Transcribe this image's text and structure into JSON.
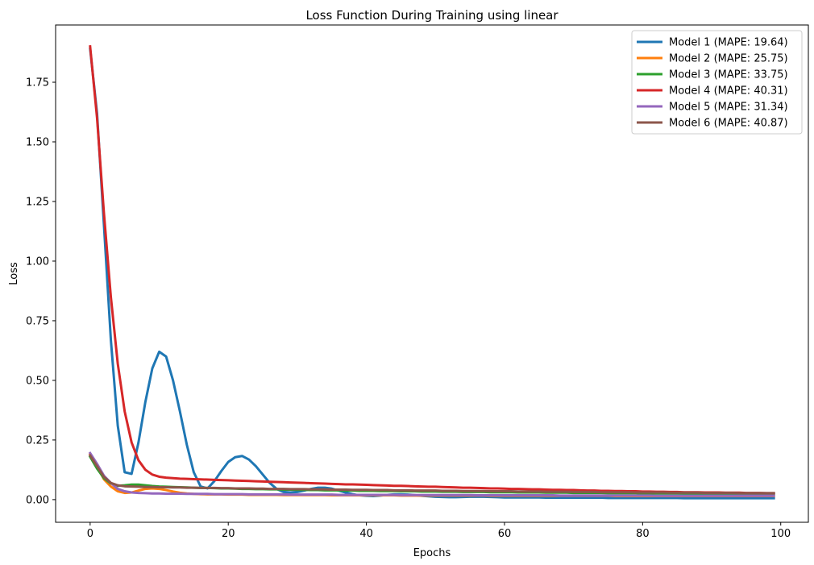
{
  "chart_data": {
    "type": "line",
    "title": "Loss Function During Training using linear",
    "xlabel": "Epochs",
    "ylabel": "Loss",
    "xlim": [
      -5,
      104
    ],
    "ylim": [
      -0.095,
      1.99
    ],
    "xticks": [
      0,
      20,
      40,
      60,
      80,
      100
    ],
    "xtick_labels": [
      "0",
      "20",
      "40",
      "60",
      "80",
      "100"
    ],
    "yticks": [
      0.0,
      0.25,
      0.5,
      0.75,
      1.0,
      1.25,
      1.5,
      1.75
    ],
    "ytick_labels": [
      "0.00",
      "0.25",
      "0.50",
      "0.75",
      "1.00",
      "1.25",
      "1.50",
      "1.75"
    ],
    "grid": false,
    "legend_position": "top-right",
    "x": {
      "start": 0,
      "end": 99,
      "step": 1
    },
    "series": [
      {
        "name": "Model 1 (MAPE: 19.64)",
        "color": "#1f77b4",
        "values": [
          1.89,
          1.62,
          1.15,
          0.67,
          0.31,
          0.115,
          0.108,
          0.24,
          0.41,
          0.55,
          0.62,
          0.6,
          0.5,
          0.37,
          0.23,
          0.115,
          0.055,
          0.047,
          0.078,
          0.12,
          0.158,
          0.178,
          0.183,
          0.168,
          0.14,
          0.105,
          0.07,
          0.045,
          0.032,
          0.03,
          0.032,
          0.038,
          0.045,
          0.05,
          0.05,
          0.046,
          0.038,
          0.03,
          0.023,
          0.018,
          0.016,
          0.015,
          0.017,
          0.02,
          0.022,
          0.022,
          0.021,
          0.019,
          0.016,
          0.014,
          0.012,
          0.011,
          0.01,
          0.01,
          0.011,
          0.012,
          0.012,
          0.012,
          0.011,
          0.01,
          0.009,
          0.009,
          0.009,
          0.009,
          0.009,
          0.009,
          0.008,
          0.008,
          0.008,
          0.008,
          0.008,
          0.008,
          0.008,
          0.008,
          0.008,
          0.007,
          0.007,
          0.007,
          0.007,
          0.007,
          0.007,
          0.007,
          0.007,
          0.007,
          0.007,
          0.007,
          0.006,
          0.006,
          0.006,
          0.006,
          0.006,
          0.006,
          0.006,
          0.006,
          0.006,
          0.006,
          0.006,
          0.006,
          0.006,
          0.006
        ]
      },
      {
        "name": "Model 2 (MAPE: 25.75)",
        "color": "#ff7f0e",
        "values": [
          0.19,
          0.14,
          0.085,
          0.055,
          0.035,
          0.028,
          0.03,
          0.038,
          0.045,
          0.047,
          0.045,
          0.04,
          0.034,
          0.029,
          0.026,
          0.024,
          0.023,
          0.022,
          0.022,
          0.022,
          0.021,
          0.021,
          0.021,
          0.02,
          0.02,
          0.02,
          0.02,
          0.02,
          0.019,
          0.019,
          0.019,
          0.019,
          0.019,
          0.019,
          0.019,
          0.018,
          0.018,
          0.018,
          0.018,
          0.018,
          0.018,
          0.018,
          0.018,
          0.018,
          0.018,
          0.017,
          0.017,
          0.017,
          0.017,
          0.017,
          0.017,
          0.017,
          0.017,
          0.017,
          0.017,
          0.017,
          0.017,
          0.017,
          0.016,
          0.016,
          0.016,
          0.016,
          0.016,
          0.016,
          0.016,
          0.016,
          0.016,
          0.016,
          0.016,
          0.016,
          0.016,
          0.016,
          0.016,
          0.016,
          0.016,
          0.016,
          0.015,
          0.015,
          0.015,
          0.015,
          0.015,
          0.015,
          0.015,
          0.015,
          0.015,
          0.015,
          0.015,
          0.015,
          0.015,
          0.015,
          0.015,
          0.015,
          0.015,
          0.015,
          0.015,
          0.015,
          0.015,
          0.015,
          0.015,
          0.015
        ]
      },
      {
        "name": "Model 3 (MAPE: 33.75)",
        "color": "#2ca02c",
        "values": [
          0.18,
          0.13,
          0.09,
          0.068,
          0.058,
          0.06,
          0.063,
          0.063,
          0.06,
          0.057,
          0.055,
          0.054,
          0.053,
          0.052,
          0.051,
          0.05,
          0.049,
          0.049,
          0.048,
          0.047,
          0.047,
          0.046,
          0.045,
          0.045,
          0.044,
          0.044,
          0.043,
          0.043,
          0.042,
          0.042,
          0.041,
          0.041,
          0.04,
          0.04,
          0.039,
          0.039,
          0.039,
          0.038,
          0.038,
          0.037,
          0.037,
          0.037,
          0.036,
          0.036,
          0.036,
          0.035,
          0.035,
          0.035,
          0.034,
          0.034,
          0.034,
          0.033,
          0.033,
          0.033,
          0.032,
          0.032,
          0.032,
          0.032,
          0.031,
          0.031,
          0.031,
          0.031,
          0.03,
          0.03,
          0.03,
          0.03,
          0.029,
          0.029,
          0.029,
          0.029,
          0.028,
          0.028,
          0.028,
          0.028,
          0.028,
          0.027,
          0.027,
          0.027,
          0.027,
          0.027,
          0.026,
          0.026,
          0.026,
          0.026,
          0.026,
          0.026,
          0.025,
          0.025,
          0.025,
          0.025,
          0.025,
          0.025,
          0.024,
          0.024,
          0.024,
          0.024,
          0.024,
          0.024,
          0.024,
          0.023
        ]
      },
      {
        "name": "Model 4 (MAPE: 40.31)",
        "color": "#d62728",
        "values": [
          1.9,
          1.6,
          1.2,
          0.85,
          0.57,
          0.37,
          0.24,
          0.165,
          0.125,
          0.105,
          0.096,
          0.092,
          0.09,
          0.088,
          0.087,
          0.086,
          0.085,
          0.084,
          0.083,
          0.082,
          0.081,
          0.08,
          0.079,
          0.078,
          0.077,
          0.076,
          0.075,
          0.074,
          0.073,
          0.072,
          0.071,
          0.07,
          0.069,
          0.068,
          0.067,
          0.066,
          0.065,
          0.064,
          0.064,
          0.063,
          0.062,
          0.061,
          0.06,
          0.059,
          0.058,
          0.058,
          0.057,
          0.056,
          0.055,
          0.054,
          0.054,
          0.053,
          0.052,
          0.051,
          0.05,
          0.05,
          0.049,
          0.048,
          0.047,
          0.047,
          0.046,
          0.045,
          0.045,
          0.044,
          0.043,
          0.043,
          0.042,
          0.041,
          0.041,
          0.04,
          0.04,
          0.039,
          0.038,
          0.038,
          0.037,
          0.037,
          0.036,
          0.036,
          0.035,
          0.035,
          0.034,
          0.034,
          0.033,
          0.033,
          0.032,
          0.032,
          0.031,
          0.031,
          0.031,
          0.03,
          0.03,
          0.03,
          0.029,
          0.029,
          0.029,
          0.028,
          0.028,
          0.028,
          0.027,
          0.027
        ]
      },
      {
        "name": "Model 5 (MAPE: 31.34)",
        "color": "#9467bd",
        "values": [
          0.195,
          0.15,
          0.1,
          0.07,
          0.045,
          0.035,
          0.03,
          0.028,
          0.027,
          0.026,
          0.026,
          0.025,
          0.025,
          0.025,
          0.024,
          0.024,
          0.024,
          0.024,
          0.023,
          0.023,
          0.023,
          0.023,
          0.023,
          0.022,
          0.022,
          0.022,
          0.022,
          0.022,
          0.022,
          0.021,
          0.021,
          0.021,
          0.021,
          0.021,
          0.021,
          0.021,
          0.02,
          0.02,
          0.02,
          0.02,
          0.02,
          0.02,
          0.02,
          0.02,
          0.02,
          0.019,
          0.019,
          0.019,
          0.019,
          0.019,
          0.019,
          0.019,
          0.019,
          0.019,
          0.019,
          0.019,
          0.018,
          0.018,
          0.018,
          0.018,
          0.018,
          0.018,
          0.018,
          0.018,
          0.018,
          0.018,
          0.018,
          0.018,
          0.017,
          0.017,
          0.017,
          0.017,
          0.017,
          0.017,
          0.017,
          0.017,
          0.017,
          0.017,
          0.017,
          0.017,
          0.017,
          0.017,
          0.016,
          0.016,
          0.016,
          0.016,
          0.016,
          0.016,
          0.016,
          0.016,
          0.016,
          0.016,
          0.016,
          0.016,
          0.016,
          0.016,
          0.016,
          0.016,
          0.016,
          0.016
        ]
      },
      {
        "name": "Model 6 (MAPE: 40.87)",
        "color": "#8c564b",
        "values": [
          0.185,
          0.14,
          0.095,
          0.07,
          0.06,
          0.056,
          0.055,
          0.054,
          0.053,
          0.053,
          0.052,
          0.052,
          0.051,
          0.051,
          0.05,
          0.05,
          0.049,
          0.049,
          0.049,
          0.048,
          0.048,
          0.047,
          0.047,
          0.047,
          0.046,
          0.046,
          0.045,
          0.045,
          0.045,
          0.044,
          0.044,
          0.044,
          0.043,
          0.043,
          0.043,
          0.042,
          0.042,
          0.042,
          0.041,
          0.041,
          0.041,
          0.04,
          0.04,
          0.04,
          0.039,
          0.039,
          0.039,
          0.038,
          0.038,
          0.038,
          0.038,
          0.037,
          0.037,
          0.037,
          0.036,
          0.036,
          0.036,
          0.036,
          0.035,
          0.035,
          0.035,
          0.035,
          0.034,
          0.034,
          0.034,
          0.034,
          0.033,
          0.033,
          0.033,
          0.033,
          0.032,
          0.032,
          0.032,
          0.032,
          0.031,
          0.031,
          0.031,
          0.031,
          0.031,
          0.03,
          0.03,
          0.03,
          0.03,
          0.03,
          0.029,
          0.029,
          0.029,
          0.029,
          0.029,
          0.028,
          0.028,
          0.028,
          0.028,
          0.028,
          0.027,
          0.027,
          0.027,
          0.027,
          0.027,
          0.027
        ]
      }
    ]
  }
}
